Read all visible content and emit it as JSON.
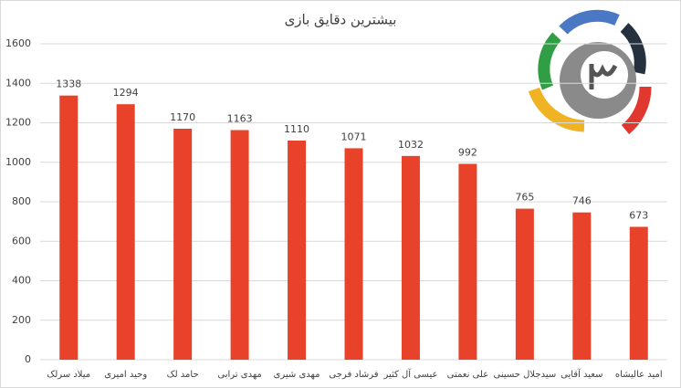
{
  "chart_data": {
    "type": "bar",
    "title": "بیشترین دقایق بازی",
    "categories": [
      "میلاد سرلک",
      "وحید امیری",
      "حامد لک",
      "مهدی ترابی",
      "مهدی شیری",
      "فرشاد فرجی",
      "عیسی آل کثیر",
      "علی نعمتی",
      "سیدجلال حسینی",
      "سعید آقایی",
      "امید عالیشاه"
    ],
    "values": [
      1338,
      1294,
      1170,
      1163,
      1110,
      1071,
      1032,
      992,
      765,
      746,
      673
    ],
    "color": "#e8432a",
    "ylim": [
      0,
      1600
    ],
    "yticks": [
      0,
      200,
      400,
      600,
      800,
      1000,
      1200,
      1400,
      1600
    ],
    "grid": true
  }
}
